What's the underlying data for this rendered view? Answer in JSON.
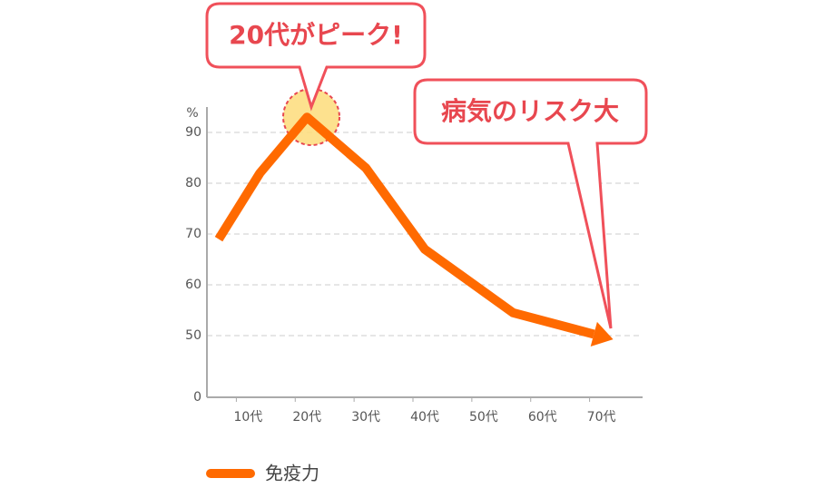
{
  "chart_data": {
    "type": "line",
    "y_unit": "%",
    "x": [
      5,
      12,
      20,
      30,
      40,
      55,
      72
    ],
    "xlim": [
      3,
      77
    ],
    "xticks": [
      {
        "value": 10,
        "label": "10代"
      },
      {
        "value": 20,
        "label": "20代"
      },
      {
        "value": 30,
        "label": "30代"
      },
      {
        "value": 40,
        "label": "40代"
      },
      {
        "value": 50,
        "label": "50代"
      },
      {
        "value": 60,
        "label": "60代"
      },
      {
        "value": 70,
        "label": "70代"
      }
    ],
    "ylim": [
      0,
      95
    ],
    "yticks": [
      0,
      50,
      60,
      70,
      80,
      90
    ],
    "axis_break": true,
    "grid": true,
    "series": [
      {
        "name": "免疫力",
        "color": "#ff6a00",
        "values": [
          69,
          82,
          93,
          83,
          67,
          54.5,
          47
        ]
      }
    ],
    "annotations": [
      "20代がピーク!",
      "病気のリスク大"
    ]
  }
}
